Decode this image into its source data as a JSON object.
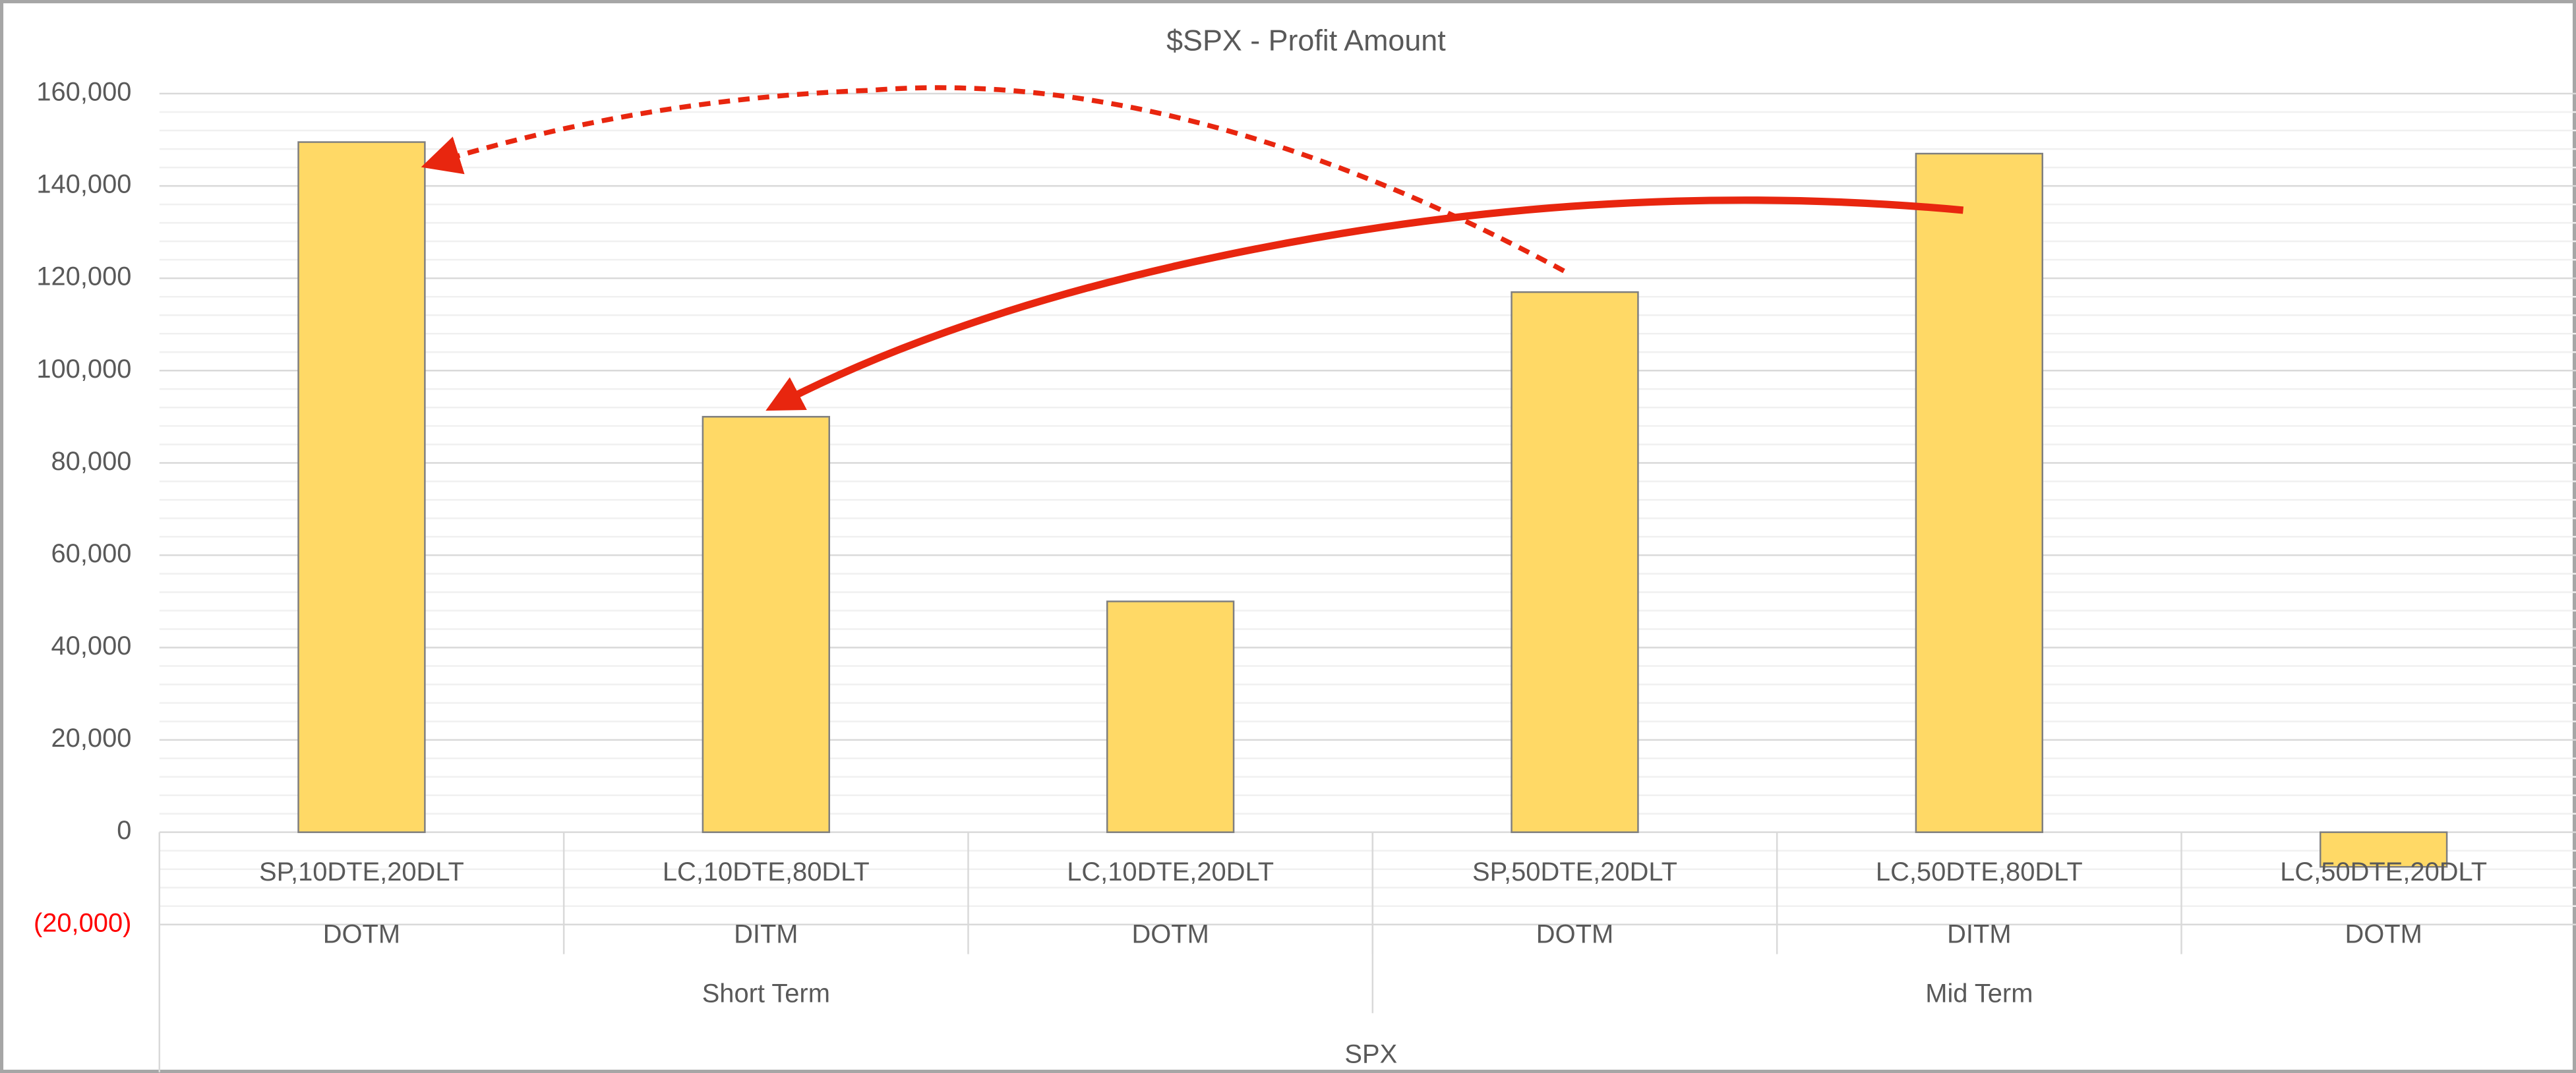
{
  "chart_data": {
    "type": "bar",
    "title": "$SPX - Profit Amount",
    "categories": [
      "SP,10DTE,20DLT",
      "LC,10DTE,80DLT",
      "LC,10DTE,20DLT",
      "SP,50DTE,20DLT",
      "LC,50DTE,80DLT",
      "LC,50DTE,20DLT"
    ],
    "sublabels": [
      "DOTM",
      "DITM",
      "DOTM",
      "DOTM",
      "DITM",
      "DOTM"
    ],
    "groups": [
      "Short Term",
      "Mid Term"
    ],
    "axis_group": "SPX",
    "values": [
      149500,
      90000,
      50000,
      117000,
      147000,
      -7500
    ],
    "color": "#ffd966",
    "ylim": [
      -20000,
      160000
    ],
    "yticks": [
      {
        "value": -20000,
        "label": "(20,000)"
      },
      0,
      {
        "value": 20000,
        "label": "20,000"
      },
      {
        "value": 40000,
        "label": "40,000"
      },
      {
        "value": 60000,
        "label": "60,000"
      },
      {
        "value": 80000,
        "label": "80,000"
      },
      {
        "value": 100000,
        "label": "100,000"
      },
      {
        "value": 120000,
        "label": "120,000"
      },
      {
        "value": 140000,
        "label": "140,000"
      },
      {
        "value": 160000,
        "label": "160,000"
      }
    ],
    "negative_tick_color": "#ff0000",
    "grid": true,
    "minor_grid": true
  }
}
